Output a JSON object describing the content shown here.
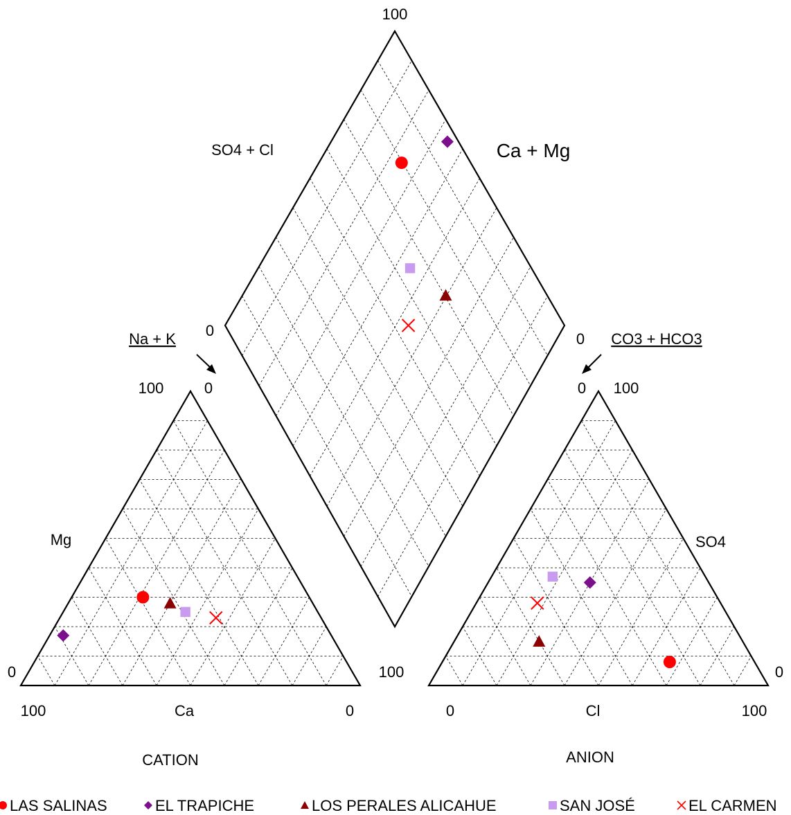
{
  "chart_data": {
    "type": "piper",
    "cation_triangle": {
      "title": "CATION",
      "axis_labels": {
        "bottom": "Ca",
        "left": "Mg",
        "top_note": "Na + K"
      },
      "tick_labels": {
        "bottom_left": "100",
        "bottom_right": "0",
        "left_bottom": "0",
        "apex_left": "100",
        "apex_right": "0",
        "right_bottom": "100"
      }
    },
    "anion_triangle": {
      "title": "ANION",
      "axis_labels": {
        "bottom": "Cl",
        "right": "SO4",
        "top_note": "CO3 + HCO3"
      },
      "tick_labels": {
        "bottom_left": "0",
        "bottom_right": "100",
        "right_bottom": "0",
        "apex_left": "0",
        "apex_right": "100"
      }
    },
    "diamond": {
      "axis_labels": {
        "upper_left": "SO4 + Cl",
        "upper_right": "Ca + Mg"
      },
      "tick_labels": {
        "top": "100",
        "left": "0",
        "right": "0"
      }
    },
    "grid": true,
    "legend_position": "bottom",
    "series": [
      {
        "name": "LAS SALINAS",
        "color": "#ff0000",
        "marker": "circle",
        "cation": {
          "ca": 49,
          "mg": 30,
          "nak": 21
        },
        "anion": {
          "cl": 67,
          "so4": 8,
          "hco3": 25
        },
        "diamond": {
          "so4cl": 75,
          "camg": 79
        }
      },
      {
        "name": "EL TRAPICHE",
        "color": "#7b0f8c",
        "marker": "diamond",
        "cation": {
          "ca": 79,
          "mg": 17,
          "nak": 4
        },
        "anion": {
          "cl": 30,
          "so4": 35,
          "hco3": 35
        },
        "diamond": {
          "so4cl": 65,
          "camg": 96
        }
      },
      {
        "name": "LOS PERALES ALICAHUE",
        "color": "#8b0000",
        "marker": "triangle",
        "cation": {
          "ca": 42,
          "mg": 28,
          "nak": 30
        },
        "anion": {
          "cl": 25,
          "so4": 15,
          "hco3": 60
        },
        "diamond": {
          "so4cl": 40,
          "camg": 70
        }
      },
      {
        "name": "SAN JOSÉ",
        "color": "#c89bf0",
        "marker": "square",
        "cation": {
          "ca": 39,
          "mg": 25,
          "nak": 36
        },
        "anion": {
          "cl": 18,
          "so4": 37,
          "hco3": 45
        },
        "diamond": {
          "so4cl": 55,
          "camg": 64
        }
      },
      {
        "name": "EL CARMEN",
        "color": "#ff0000",
        "marker": "x",
        "cation": {
          "ca": 31,
          "mg": 23,
          "nak": 46
        },
        "anion": {
          "cl": 18,
          "so4": 28,
          "hco3": 54
        },
        "diamond": {
          "so4cl": 46,
          "camg": 54
        }
      }
    ]
  }
}
